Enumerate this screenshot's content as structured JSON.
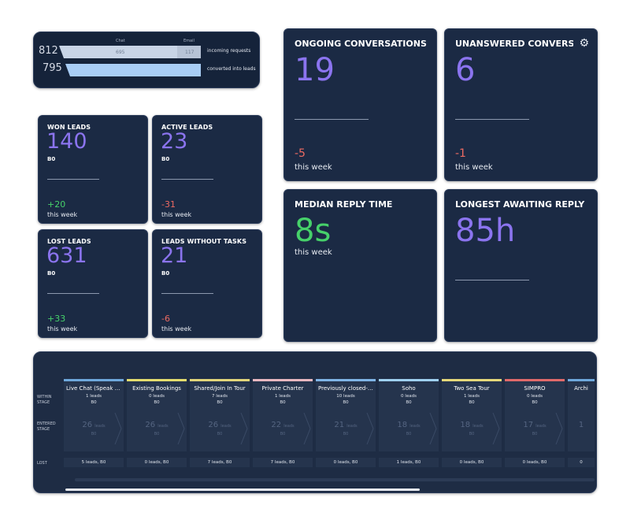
{
  "funnel": {
    "col_chat": "Chat",
    "col_email": "Email",
    "incoming_count": "812",
    "incoming_chat": "695",
    "incoming_email": "117",
    "incoming_label": "incoming requests",
    "converted_count": "795",
    "converted_label": "converted into leads"
  },
  "stats": {
    "won": {
      "title": "WON LEADS",
      "value": "140",
      "sub": "B0",
      "delta": "+20",
      "week": "this week"
    },
    "active": {
      "title": "ACTIVE LEADS",
      "value": "23",
      "sub": "B0",
      "delta": "-31",
      "week": "this week"
    },
    "lost": {
      "title": "LOST LEADS",
      "value": "631",
      "sub": "B0",
      "delta": "+33",
      "week": "this week"
    },
    "no_tasks": {
      "title": "LEADS WITHOUT TASKS",
      "value": "21",
      "sub": "B0",
      "delta": "-6",
      "week": "this week"
    }
  },
  "big": {
    "ongoing": {
      "title": "ONGOING CONVERSATIONS",
      "value": "19",
      "delta": "-5",
      "week": "this week"
    },
    "unanswered": {
      "title": "UNANSWERED CONVERSATI",
      "value": "6",
      "delta": "-1",
      "week": "this week"
    },
    "median": {
      "title": "MEDIAN REPLY TIME",
      "value": "8s",
      "week": "this week"
    },
    "longest": {
      "title": "LONGEST AWAITING REPLY",
      "value": "85h"
    }
  },
  "pipeline": {
    "row_within": "WITHIN STAGE",
    "row_entered": "ENTERED STAGE",
    "row_lost": "LOST",
    "stages": [
      {
        "name": "Live Chat (Speak to ...",
        "leads": "1 leads",
        "amount": "B0",
        "entered": "26",
        "entered_unit": "leads",
        "entered_amount": "B0",
        "lost": "5 leads, B0",
        "color": "#6fa8dc"
      },
      {
        "name": "Existing Bookings",
        "leads": "0 leads",
        "amount": "B0",
        "entered": "26",
        "entered_unit": "leads",
        "entered_amount": "B0",
        "lost": "0 leads, B0",
        "color": "#e5dd6e"
      },
      {
        "name": "Shared/Join In Tour",
        "leads": "7 leads",
        "amount": "B0",
        "entered": "26",
        "entered_unit": "leads",
        "entered_amount": "B0",
        "lost": "7 leads, B0",
        "color": "#e3d67a"
      },
      {
        "name": "Private Charter",
        "leads": "1 leads",
        "amount": "B0",
        "entered": "22",
        "entered_unit": "leads",
        "entered_amount": "B0",
        "lost": "7 leads, B0",
        "color": "#e8b8c0"
      },
      {
        "name": "Previously closed-re...",
        "leads": "10 leads",
        "amount": "B0",
        "entered": "21",
        "entered_unit": "leads",
        "entered_amount": "B0",
        "lost": "0 leads, B0",
        "color": "#7fb4e6"
      },
      {
        "name": "Soho",
        "leads": "0 leads",
        "amount": "B0",
        "entered": "18",
        "entered_unit": "leads",
        "entered_amount": "B0",
        "lost": "1 leads, B0",
        "color": "#9fd0f0"
      },
      {
        "name": "Two Sea Tour",
        "leads": "1 leads",
        "amount": "B0",
        "entered": "18",
        "entered_unit": "leads",
        "entered_amount": "B0",
        "lost": "0 leads, B0",
        "color": "#e6d87a"
      },
      {
        "name": "SIMPRO",
        "leads": "0 leads",
        "amount": "B0",
        "entered": "17",
        "entered_unit": "leads",
        "entered_amount": "B0",
        "lost": "0 leads, B0",
        "color": "#e06a6a"
      },
      {
        "name": "Archi",
        "leads": "",
        "amount": "",
        "entered": "1",
        "entered_unit": "",
        "entered_amount": "",
        "lost": "0",
        "color": "#6fa8dc"
      }
    ]
  }
}
